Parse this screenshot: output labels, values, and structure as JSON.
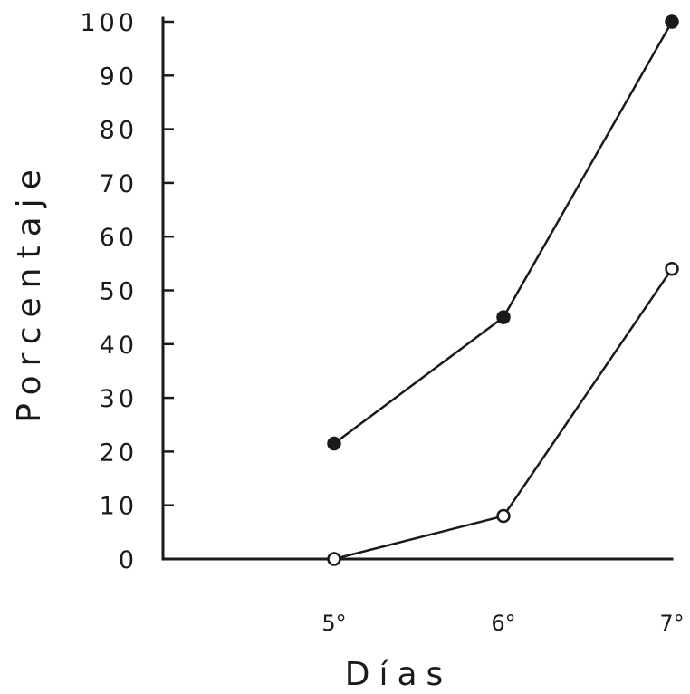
{
  "chart_data": {
    "type": "line",
    "title": "",
    "xlabel": "Días",
    "ylabel": "Porcentaje",
    "categories": [
      "5°",
      "6°",
      "7°"
    ],
    "ylim": [
      0,
      100
    ],
    "yticks": [
      "0",
      "10",
      "20",
      "30",
      "40",
      "50",
      "60",
      "70",
      "80",
      "90",
      "100"
    ],
    "grid": false,
    "legend": "none",
    "series": [
      {
        "marker": "filled-circle",
        "color": "#1a1a1a",
        "values": [
          21.5,
          45,
          100
        ]
      },
      {
        "marker": "open-circle",
        "color": "#1a1a1a",
        "values": [
          0,
          8,
          54
        ]
      }
    ]
  }
}
